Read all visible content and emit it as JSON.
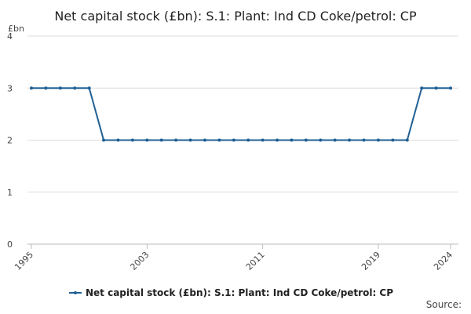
{
  "chart_data": {
    "type": "line",
    "title": "Net capital stock (£bn): S.1: Plant: Ind CD Coke/petrol: CP",
    "y_label": "£bn",
    "source": "Source:",
    "x": [
      1995,
      1996,
      1997,
      1998,
      1999,
      2000,
      2001,
      2002,
      2003,
      2004,
      2005,
      2006,
      2007,
      2008,
      2009,
      2010,
      2011,
      2012,
      2013,
      2014,
      2015,
      2016,
      2017,
      2018,
      2019,
      2020,
      2021,
      2022,
      2023,
      2024
    ],
    "series": [
      {
        "name": "Net capital stock (£bn): S.1: Plant: Ind CD Coke/petrol: CP",
        "color": "#206095",
        "values": [
          3,
          3,
          3,
          3,
          3,
          2,
          2,
          2,
          2,
          2,
          2,
          2,
          2,
          2,
          2,
          2,
          2,
          2,
          2,
          2,
          2,
          2,
          2,
          2,
          2,
          2,
          2,
          3,
          3,
          3
        ]
      }
    ],
    "xlim": [
      1995,
      2024
    ],
    "xticks": [
      1995,
      2003,
      2011,
      2019,
      2024
    ],
    "ylim": [
      0,
      4
    ],
    "yticks": [
      0,
      1,
      2,
      3,
      4
    ],
    "grid": true
  }
}
